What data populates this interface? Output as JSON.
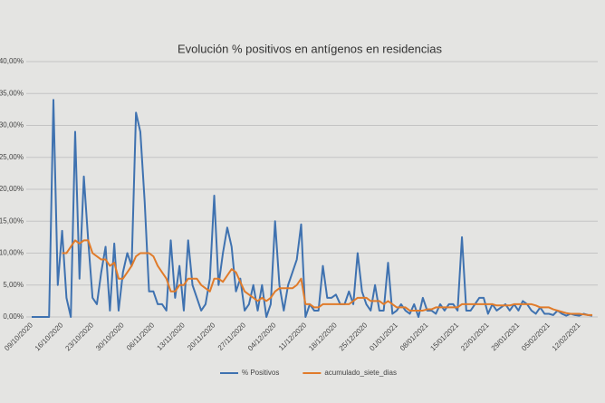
{
  "chart_data": {
    "type": "line",
    "title": "Evolución % positivos en antígenos en residencias",
    "categories": [
      "09/10/2020",
      null,
      null,
      null,
      null,
      null,
      null,
      "16/10/2020",
      null,
      null,
      null,
      null,
      null,
      null,
      "23/10/2020",
      null,
      null,
      null,
      null,
      null,
      null,
      "30/10/2020",
      null,
      null,
      null,
      null,
      null,
      null,
      "06/11/2020",
      null,
      null,
      null,
      null,
      null,
      null,
      "13/11/2020",
      null,
      null,
      null,
      null,
      null,
      null,
      "20/11/2020",
      null,
      null,
      null,
      null,
      null,
      null,
      "27/11/2020",
      null,
      null,
      null,
      null,
      null,
      null,
      "04/12/2020",
      null,
      null,
      null,
      null,
      null,
      null,
      "11/12/2020",
      null,
      null,
      null,
      null,
      null,
      null,
      "18/12/2020",
      null,
      null,
      null,
      null,
      null,
      null,
      "25/12/2020",
      null,
      null,
      null,
      null,
      null,
      null,
      "01/01/2021",
      null,
      null,
      null,
      null,
      null,
      null,
      "08/01/2021",
      null,
      null,
      null,
      null,
      null,
      null,
      "15/01/2021",
      null,
      null,
      null,
      null,
      null,
      null,
      "22/01/2021",
      null,
      null,
      null,
      null,
      null,
      null,
      "29/01/2021",
      null,
      null,
      null,
      null,
      null,
      null,
      "05/02/2021",
      null,
      null,
      null,
      null,
      null,
      null,
      "12/02/2021",
      null,
      null,
      null
    ],
    "series": [
      {
        "name": "% Positivos",
        "color": "#3f72b0",
        "values": [
          0,
          0,
          0,
          0,
          0,
          34,
          5,
          13.5,
          3,
          0,
          29,
          6,
          22,
          12,
          3,
          2,
          7,
          11,
          1,
          11.5,
          1,
          7,
          10,
          8,
          32,
          29,
          18,
          4,
          4,
          2,
          2,
          1,
          12,
          3,
          8,
          1,
          12,
          5,
          3,
          1,
          2,
          6,
          19,
          5,
          10,
          14,
          11,
          4,
          6,
          1,
          2,
          5,
          1,
          5,
          0,
          2,
          15,
          5,
          1,
          5,
          7,
          9,
          14.5,
          0,
          2,
          1,
          1,
          8,
          3,
          3,
          3.5,
          2,
          2,
          4,
          2,
          10,
          4,
          2,
          1,
          5,
          1,
          1,
          8.5,
          0.5,
          1,
          2,
          1,
          0.5,
          2,
          0,
          3,
          1,
          1,
          0.5,
          2,
          1,
          2,
          2,
          1,
          12.5,
          1,
          1,
          2,
          3,
          3,
          0.5,
          2,
          1,
          1.5,
          2,
          1,
          2,
          1,
          2.5,
          2,
          1,
          0.5,
          1.5,
          0.5,
          0.5,
          0.3,
          1,
          0.5,
          0.2,
          0.5,
          0.3,
          0.2,
          0.5,
          0.3,
          0.2
        ]
      },
      {
        "name": "acumulado_siete_dias",
        "color": "#e07b2a",
        "values": [
          null,
          null,
          null,
          null,
          null,
          null,
          null,
          10,
          10,
          11,
          12,
          11.5,
          12,
          12,
          10,
          9.5,
          9,
          9,
          8,
          8.5,
          6,
          6,
          7,
          8,
          9.5,
          10,
          10,
          10,
          9.5,
          8,
          7,
          6,
          4,
          4,
          5,
          5,
          6,
          6,
          6,
          5,
          4.5,
          4,
          6,
          6,
          5.5,
          6.5,
          7.5,
          7,
          5.5,
          4,
          3.5,
          3,
          2.5,
          3,
          2.5,
          3,
          4,
          4.5,
          4.5,
          4.5,
          4.5,
          5,
          6,
          2,
          2,
          1.5,
          1.5,
          2,
          2,
          2,
          2,
          2,
          2,
          2,
          2.5,
          3,
          3,
          3,
          2.5,
          2.5,
          2.5,
          2,
          2.5,
          2,
          1.5,
          1.5,
          1.5,
          1,
          1,
          1,
          1,
          1.2,
          1.2,
          1.5,
          1.5,
          1.5,
          1.5,
          1.5,
          1.5,
          2,
          2,
          2,
          2,
          2,
          2,
          2,
          2,
          1.8,
          1.8,
          1.8,
          1.8,
          2,
          2,
          2,
          2,
          2,
          1.8,
          1.5,
          1.5,
          1.5,
          1.2,
          1,
          0.8,
          0.6,
          0.5,
          0.5,
          0.5,
          0.4,
          0.3,
          0.3
        ]
      }
    ],
    "ylim": [
      0,
      40
    ],
    "yticks": [
      {
        "value": 0,
        "label": "0,00%"
      },
      {
        "value": 5,
        "label": "5,00%"
      },
      {
        "value": 10,
        "label": "10,00%"
      },
      {
        "value": 15,
        "label": "15,00%"
      },
      {
        "value": 20,
        "label": "20,00%"
      },
      {
        "value": 25,
        "label": "25,00%"
      },
      {
        "value": 30,
        "label": "30,00%"
      },
      {
        "value": 35,
        "label": "35,00%"
      },
      {
        "value": 40,
        "label": "40,00%"
      }
    ],
    "grid": true,
    "legend": "bottom"
  }
}
